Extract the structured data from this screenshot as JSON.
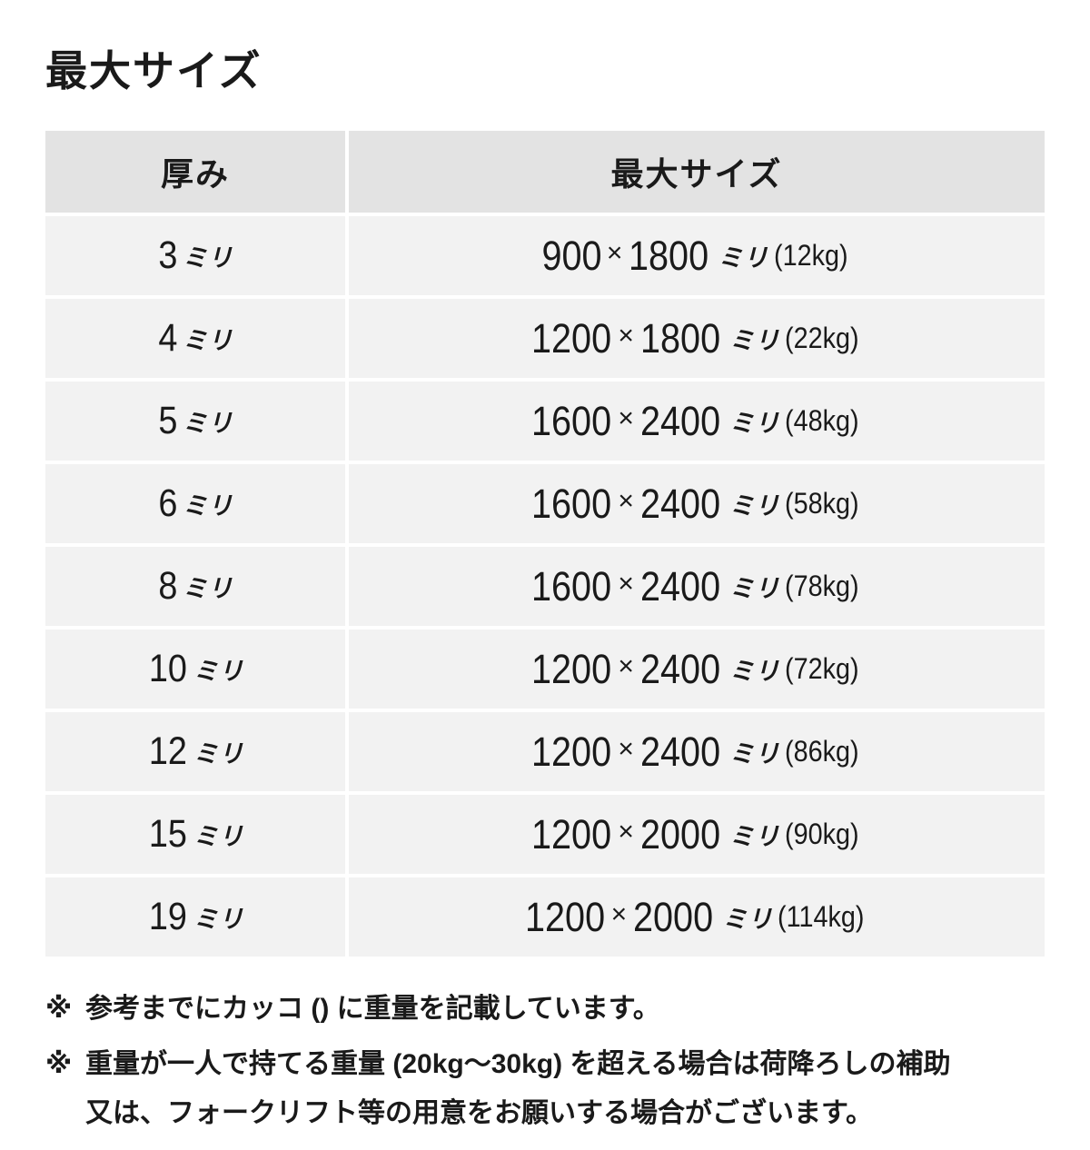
{
  "page": {
    "title": "最大サイズ"
  },
  "table": {
    "headers": {
      "thickness": "厚み",
      "max_size": "最大サイズ"
    },
    "times_symbol": "×",
    "unit_label": "ミリ",
    "rows": [
      {
        "thickness": "3",
        "width": "900",
        "height": "1800",
        "weight": "(12kg)"
      },
      {
        "thickness": "4",
        "width": "1200",
        "height": "1800",
        "weight": "(22kg)"
      },
      {
        "thickness": "5",
        "width": "1600",
        "height": "2400",
        "weight": "(48kg)"
      },
      {
        "thickness": "6",
        "width": "1600",
        "height": "2400",
        "weight": "(58kg)"
      },
      {
        "thickness": "8",
        "width": "1600",
        "height": "2400",
        "weight": "(78kg)"
      },
      {
        "thickness": "10",
        "width": "1200",
        "height": "2400",
        "weight": "(72kg)"
      },
      {
        "thickness": "12",
        "width": "1200",
        "height": "2400",
        "weight": "(86kg)"
      },
      {
        "thickness": "15",
        "width": "1200",
        "height": "2000",
        "weight": "(90kg)"
      },
      {
        "thickness": "19",
        "width": "1200",
        "height": "2000",
        "weight": "(114kg)"
      }
    ]
  },
  "notes": {
    "marker": "※",
    "note1": "参考までにカッコ () に重量を記載しています。",
    "note2_line1": "重量が一人で持てる重量 (20kg～30kg) を超える場合は荷降ろしの補助",
    "note2_line2": "又は、フォークリフト等の用意をお願いする場合がございます。"
  },
  "colors": {
    "header_bg": "#e3e3e3",
    "row_bg": "#f2f2f2",
    "text": "#1a1a1a",
    "page_bg": "#ffffff"
  }
}
